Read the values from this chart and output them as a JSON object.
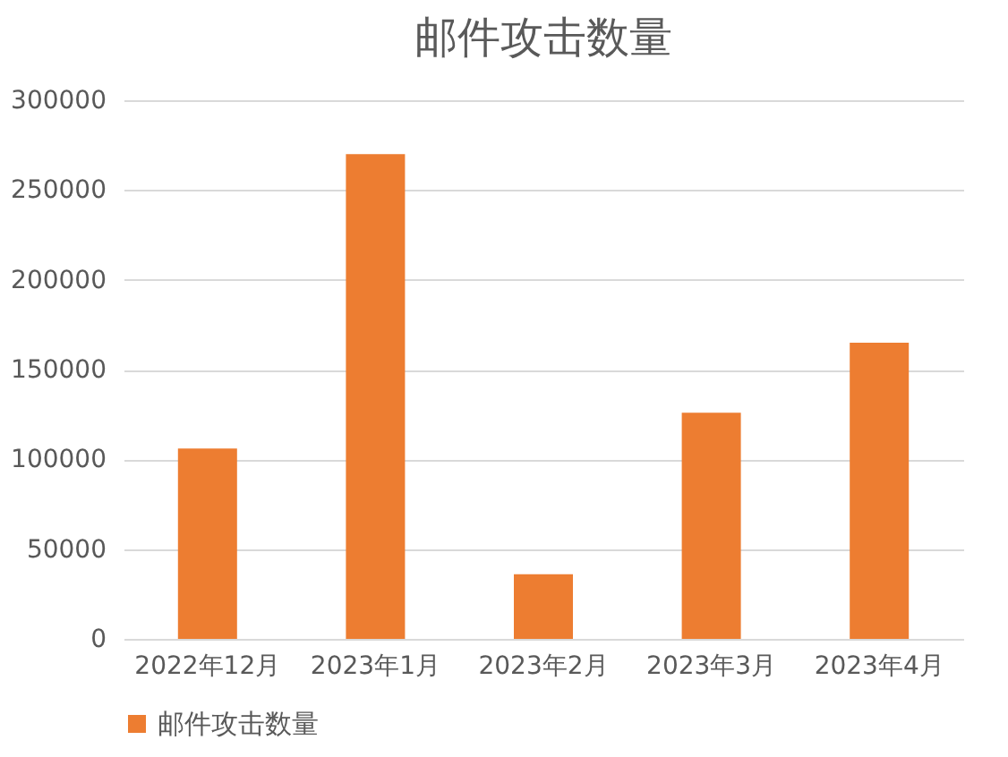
{
  "chart_data": {
    "type": "bar",
    "title": "邮件攻击数量",
    "categories": [
      "2022年12月",
      "2023年1月",
      "2023年2月",
      "2023年3月",
      "2023年4月"
    ],
    "series": [
      {
        "name": "邮件攻击数量",
        "color": "#ed7d31",
        "values": [
          106000,
          270000,
          36000,
          126000,
          165000
        ]
      }
    ],
    "ylim": [
      0,
      300000
    ],
    "yticks": [
      0,
      50000,
      100000,
      150000,
      200000,
      250000,
      300000
    ],
    "grid": "y",
    "legend": "bottom"
  }
}
